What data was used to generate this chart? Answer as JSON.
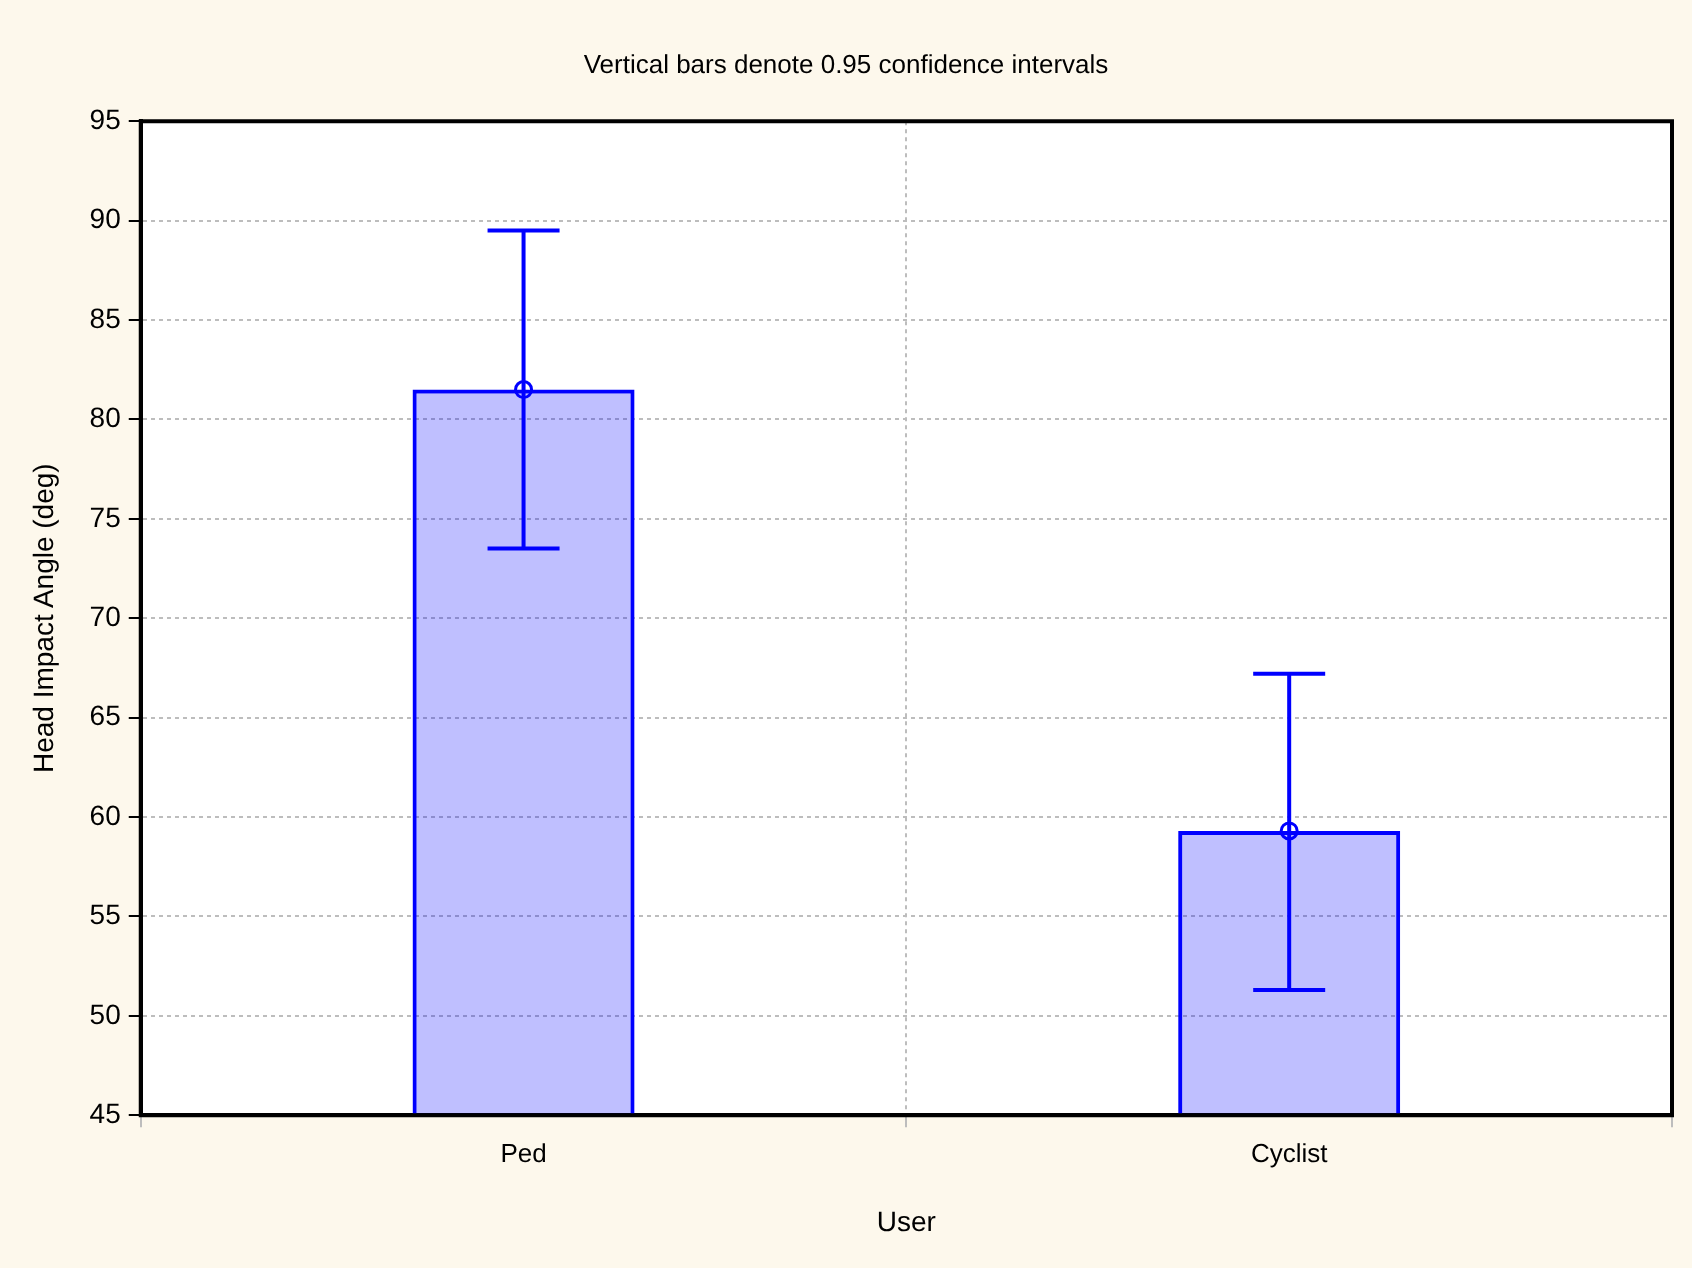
{
  "chart_data": {
    "type": "bar",
    "title": "Vertical bars denote 0.95 confidence intervals",
    "xlabel": "User",
    "ylabel": "Head Impact Angle (deg)",
    "categories": [
      "Ped",
      "Cyclist"
    ],
    "series": [
      {
        "color": "#0000ff",
        "values": [
          81.5,
          59.3
        ],
        "errors": [
          [
            73.5,
            89.5
          ],
          [
            51.3,
            67.2
          ]
        ]
      },
      {
        "type": "scatter",
        "x": [
          "Ped",
          "Cyclist"
        ],
        "color": "#0000ff",
        "values": [
          81.5,
          59.3
        ],
        "marker": "circle"
      }
    ],
    "ylim": [
      45,
      95
    ],
    "yticks": [
      45,
      50,
      55,
      60,
      65,
      70,
      75,
      80,
      85,
      90,
      95
    ],
    "grid": true,
    "legend": false
  }
}
